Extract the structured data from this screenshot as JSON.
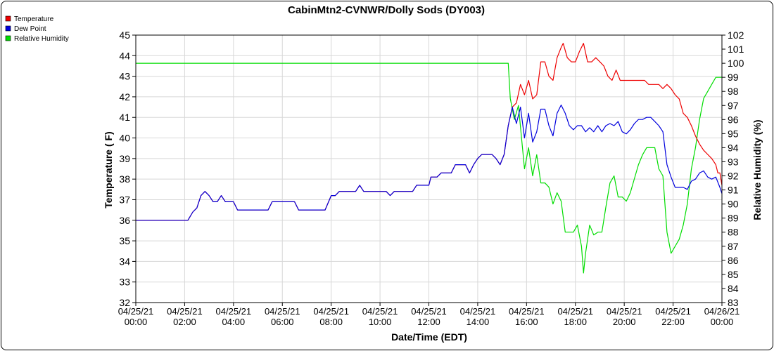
{
  "chart_data": {
    "type": "line",
    "title": "CabinMtn2-CVNWR/Dolly Sods (DY003)",
    "xlabel": "Date/Time (EDT)",
    "ylabel": "Temperature ( F)",
    "y2label": "Relative Humidity (%)",
    "xlim": [
      "2021-04-25 00:00",
      "2021-04-26 00:00"
    ],
    "ylim": [
      32,
      45
    ],
    "y2lim": [
      83,
      102
    ],
    "x_tick_labels": [
      [
        "04/25/21",
        "00:00"
      ],
      [
        "04/25/21",
        "02:00"
      ],
      [
        "04/25/21",
        "04:00"
      ],
      [
        "04/25/21",
        "06:00"
      ],
      [
        "04/25/21",
        "08:00"
      ],
      [
        "04/25/21",
        "10:00"
      ],
      [
        "04/25/21",
        "12:00"
      ],
      [
        "04/25/21",
        "14:00"
      ],
      [
        "04/25/21",
        "16:00"
      ],
      [
        "04/25/21",
        "18:00"
      ],
      [
        "04/25/21",
        "20:00"
      ],
      [
        "04/25/21",
        "22:00"
      ],
      [
        "04/26/21",
        "00:00"
      ]
    ],
    "y_ticks": [
      32,
      33,
      34,
      35,
      36,
      37,
      38,
      39,
      40,
      41,
      42,
      43,
      44,
      45
    ],
    "y2_ticks": [
      83,
      84,
      85,
      86,
      87,
      88,
      89,
      90,
      91,
      92,
      93,
      94,
      95,
      96,
      97,
      98,
      99,
      100,
      101,
      102
    ],
    "grid": true,
    "legend_position": "top-left",
    "series": [
      {
        "name": "Temperature",
        "color": "#ee0000",
        "axis": "left",
        "points": [
          [
            "00:00",
            36.0
          ],
          [
            "02:08",
            36.0
          ],
          [
            "02:20",
            36.4
          ],
          [
            "02:30",
            36.6
          ],
          [
            "02:40",
            37.2
          ],
          [
            "02:50",
            37.4
          ],
          [
            "03:00",
            37.2
          ],
          [
            "03:10",
            36.9
          ],
          [
            "03:20",
            36.9
          ],
          [
            "03:30",
            37.2
          ],
          [
            "03:40",
            36.9
          ],
          [
            "03:50",
            36.9
          ],
          [
            "04:00",
            36.9
          ],
          [
            "04:10",
            36.5
          ],
          [
            "05:25",
            36.5
          ],
          [
            "05:35",
            36.9
          ],
          [
            "06:30",
            36.9
          ],
          [
            "06:40",
            36.5
          ],
          [
            "07:45",
            36.5
          ],
          [
            "08:00",
            37.2
          ],
          [
            "08:10",
            37.2
          ],
          [
            "08:20",
            37.4
          ],
          [
            "09:00",
            37.4
          ],
          [
            "09:10",
            37.7
          ],
          [
            "09:20",
            37.4
          ],
          [
            "10:15",
            37.4
          ],
          [
            "10:25",
            37.2
          ],
          [
            "10:35",
            37.4
          ],
          [
            "11:20",
            37.4
          ],
          [
            "11:30",
            37.7
          ],
          [
            "12:00",
            37.7
          ],
          [
            "12:05",
            38.1
          ],
          [
            "12:20",
            38.1
          ],
          [
            "12:30",
            38.3
          ],
          [
            "12:55",
            38.3
          ],
          [
            "13:05",
            38.7
          ],
          [
            "13:30",
            38.7
          ],
          [
            "13:40",
            38.3
          ],
          [
            "13:50",
            38.7
          ],
          [
            "14:00",
            39.0
          ],
          [
            "14:10",
            39.2
          ],
          [
            "14:35",
            39.2
          ],
          [
            "14:45",
            39.0
          ],
          [
            "14:55",
            38.7
          ],
          [
            "15:05",
            39.2
          ],
          [
            "15:15",
            40.6
          ],
          [
            "15:25",
            41.5
          ],
          [
            "15:35",
            41.7
          ],
          [
            "15:45",
            42.6
          ],
          [
            "15:55",
            42.1
          ],
          [
            "16:05",
            42.8
          ],
          [
            "16:15",
            41.9
          ],
          [
            "16:25",
            42.1
          ],
          [
            "16:35",
            43.7
          ],
          [
            "16:45",
            43.7
          ],
          [
            "16:55",
            43.0
          ],
          [
            "17:05",
            42.8
          ],
          [
            "17:15",
            43.9
          ],
          [
            "17:25",
            44.4
          ],
          [
            "17:30",
            44.6
          ],
          [
            "17:40",
            43.9
          ],
          [
            "17:50",
            43.7
          ],
          [
            "18:00",
            43.7
          ],
          [
            "18:10",
            44.2
          ],
          [
            "18:20",
            44.6
          ],
          [
            "18:30",
            43.7
          ],
          [
            "18:40",
            43.7
          ],
          [
            "18:50",
            43.9
          ],
          [
            "19:00",
            43.7
          ],
          [
            "19:10",
            43.5
          ],
          [
            "19:20",
            43.0
          ],
          [
            "19:30",
            42.8
          ],
          [
            "19:40",
            43.3
          ],
          [
            "19:50",
            42.8
          ],
          [
            "20:50",
            42.8
          ],
          [
            "21:00",
            42.6
          ],
          [
            "21:25",
            42.6
          ],
          [
            "21:35",
            42.4
          ],
          [
            "21:45",
            42.6
          ],
          [
            "21:55",
            42.4
          ],
          [
            "22:05",
            42.1
          ],
          [
            "22:15",
            41.9
          ],
          [
            "22:25",
            41.2
          ],
          [
            "22:35",
            41.0
          ],
          [
            "22:45",
            40.6
          ],
          [
            "22:55",
            40.1
          ],
          [
            "23:05",
            39.7
          ],
          [
            "23:15",
            39.4
          ],
          [
            "23:25",
            39.2
          ],
          [
            "23:35",
            39.0
          ],
          [
            "23:45",
            38.7
          ],
          [
            "23:50",
            38.3
          ],
          [
            "23:55",
            38.3
          ],
          [
            "24:00",
            37.7
          ]
        ]
      },
      {
        "name": "Dew Point",
        "color": "#0000dd",
        "axis": "left",
        "points": [
          [
            "00:00",
            36.0
          ],
          [
            "02:08",
            36.0
          ],
          [
            "02:20",
            36.4
          ],
          [
            "02:30",
            36.6
          ],
          [
            "02:40",
            37.2
          ],
          [
            "02:50",
            37.4
          ],
          [
            "03:00",
            37.2
          ],
          [
            "03:10",
            36.9
          ],
          [
            "03:20",
            36.9
          ],
          [
            "03:30",
            37.2
          ],
          [
            "03:40",
            36.9
          ],
          [
            "03:50",
            36.9
          ],
          [
            "04:00",
            36.9
          ],
          [
            "04:10",
            36.5
          ],
          [
            "05:25",
            36.5
          ],
          [
            "05:35",
            36.9
          ],
          [
            "06:30",
            36.9
          ],
          [
            "06:40",
            36.5
          ],
          [
            "07:45",
            36.5
          ],
          [
            "08:00",
            37.2
          ],
          [
            "08:10",
            37.2
          ],
          [
            "08:20",
            37.4
          ],
          [
            "09:00",
            37.4
          ],
          [
            "09:10",
            37.7
          ],
          [
            "09:20",
            37.4
          ],
          [
            "10:15",
            37.4
          ],
          [
            "10:25",
            37.2
          ],
          [
            "10:35",
            37.4
          ],
          [
            "11:20",
            37.4
          ],
          [
            "11:30",
            37.7
          ],
          [
            "12:00",
            37.7
          ],
          [
            "12:05",
            38.1
          ],
          [
            "12:20",
            38.1
          ],
          [
            "12:30",
            38.3
          ],
          [
            "12:55",
            38.3
          ],
          [
            "13:05",
            38.7
          ],
          [
            "13:30",
            38.7
          ],
          [
            "13:40",
            38.3
          ],
          [
            "13:50",
            38.7
          ],
          [
            "14:00",
            39.0
          ],
          [
            "14:10",
            39.2
          ],
          [
            "14:35",
            39.2
          ],
          [
            "14:45",
            39.0
          ],
          [
            "14:55",
            38.7
          ],
          [
            "15:05",
            39.2
          ],
          [
            "15:15",
            40.6
          ],
          [
            "15:25",
            41.5
          ],
          [
            "15:35",
            40.7
          ],
          [
            "15:45",
            41.5
          ],
          [
            "15:55",
            40.0
          ],
          [
            "16:05",
            41.2
          ],
          [
            "16:15",
            39.8
          ],
          [
            "16:25",
            40.3
          ],
          [
            "16:35",
            41.4
          ],
          [
            "16:45",
            41.4
          ],
          [
            "16:55",
            40.6
          ],
          [
            "17:05",
            40.1
          ],
          [
            "17:15",
            41.2
          ],
          [
            "17:25",
            41.6
          ],
          [
            "17:35",
            41.2
          ],
          [
            "17:45",
            40.6
          ],
          [
            "17:55",
            40.4
          ],
          [
            "18:05",
            40.6
          ],
          [
            "18:15",
            40.6
          ],
          [
            "18:25",
            40.3
          ],
          [
            "18:35",
            40.5
          ],
          [
            "18:45",
            40.3
          ],
          [
            "18:55",
            40.6
          ],
          [
            "19:05",
            40.3
          ],
          [
            "19:15",
            40.6
          ],
          [
            "19:25",
            40.7
          ],
          [
            "19:35",
            40.6
          ],
          [
            "19:45",
            40.8
          ],
          [
            "19:55",
            40.3
          ],
          [
            "20:05",
            40.2
          ],
          [
            "20:15",
            40.4
          ],
          [
            "20:25",
            40.7
          ],
          [
            "20:35",
            40.9
          ],
          [
            "20:45",
            40.9
          ],
          [
            "20:55",
            41.0
          ],
          [
            "21:05",
            41.0
          ],
          [
            "21:15",
            40.8
          ],
          [
            "21:25",
            40.6
          ],
          [
            "21:35",
            40.3
          ],
          [
            "21:45",
            38.7
          ],
          [
            "21:55",
            38.1
          ],
          [
            "22:05",
            37.6
          ],
          [
            "22:15",
            37.6
          ],
          [
            "22:25",
            37.6
          ],
          [
            "22:35",
            37.5
          ],
          [
            "22:45",
            37.9
          ],
          [
            "22:55",
            38.0
          ],
          [
            "23:05",
            38.3
          ],
          [
            "23:15",
            38.4
          ],
          [
            "23:25",
            38.1
          ],
          [
            "23:35",
            38.0
          ],
          [
            "23:45",
            38.1
          ],
          [
            "23:55",
            37.6
          ],
          [
            "24:00",
            37.3
          ]
        ]
      },
      {
        "name": "Relative Humidity",
        "color": "#00dd00",
        "axis": "right",
        "points": [
          [
            "00:00",
            100.0
          ],
          [
            "15:15",
            100.0
          ],
          [
            "15:20",
            97.5
          ],
          [
            "15:30",
            96.0
          ],
          [
            "15:40",
            97.0
          ],
          [
            "15:55",
            92.5
          ],
          [
            "16:05",
            94.0
          ],
          [
            "16:15",
            92.0
          ],
          [
            "16:25",
            93.5
          ],
          [
            "16:35",
            91.5
          ],
          [
            "16:45",
            91.5
          ],
          [
            "16:55",
            91.2
          ],
          [
            "17:05",
            90.0
          ],
          [
            "17:15",
            90.8
          ],
          [
            "17:25",
            90.2
          ],
          [
            "17:35",
            88.0
          ],
          [
            "17:45",
            88.0
          ],
          [
            "17:55",
            88.0
          ],
          [
            "18:05",
            88.5
          ],
          [
            "18:15",
            87.0
          ],
          [
            "18:20",
            85.1
          ],
          [
            "18:25",
            86.5
          ],
          [
            "18:35",
            88.5
          ],
          [
            "18:45",
            87.8
          ],
          [
            "18:55",
            88.0
          ],
          [
            "19:05",
            88.0
          ],
          [
            "19:15",
            89.8
          ],
          [
            "19:25",
            91.5
          ],
          [
            "19:35",
            92.0
          ],
          [
            "19:45",
            90.5
          ],
          [
            "19:55",
            90.5
          ],
          [
            "20:05",
            90.2
          ],
          [
            "20:15",
            90.8
          ],
          [
            "20:25",
            91.8
          ],
          [
            "20:35",
            92.8
          ],
          [
            "20:45",
            93.5
          ],
          [
            "20:55",
            94.0
          ],
          [
            "21:05",
            94.0
          ],
          [
            "21:15",
            94.0
          ],
          [
            "21:25",
            92.5
          ],
          [
            "21:35",
            92.0
          ],
          [
            "21:45",
            88.0
          ],
          [
            "21:55",
            86.5
          ],
          [
            "22:05",
            87.0
          ],
          [
            "22:15",
            87.5
          ],
          [
            "22:25",
            88.5
          ],
          [
            "22:35",
            90.0
          ],
          [
            "22:45",
            92.5
          ],
          [
            "22:55",
            94.0
          ],
          [
            "23:05",
            96.0
          ],
          [
            "23:15",
            97.5
          ],
          [
            "23:25",
            98.0
          ],
          [
            "23:35",
            98.5
          ],
          [
            "23:45",
            99.0
          ],
          [
            "23:55",
            99.0
          ],
          [
            "24:00",
            99.0
          ]
        ]
      }
    ]
  }
}
